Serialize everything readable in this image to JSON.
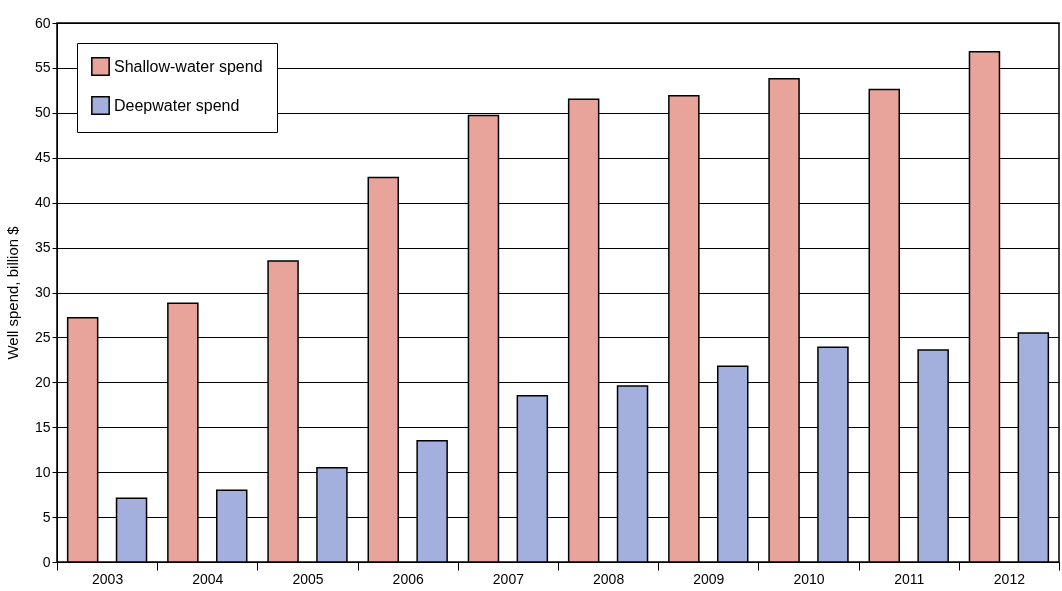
{
  "chart_data": {
    "type": "bar",
    "ylabel": "Well spend, billion $",
    "categories": [
      "2003",
      "2004",
      "2005",
      "2006",
      "2007",
      "2008",
      "2009",
      "2010",
      "2011",
      "2012"
    ],
    "series": [
      {
        "name": "Shallow-water spend",
        "color": "#e8a39b",
        "values": [
          27.2,
          28.8,
          33.5,
          42.8,
          49.7,
          51.5,
          51.9,
          53.8,
          52.6,
          56.8
        ]
      },
      {
        "name": "Deepwater spend",
        "color": "#a3b0de",
        "values": [
          7.1,
          8.0,
          10.5,
          13.5,
          18.5,
          19.6,
          21.8,
          23.9,
          23.6,
          25.5
        ]
      }
    ],
    "ylim": [
      0,
      60
    ],
    "yticks": [
      0,
      5,
      10,
      15,
      20,
      25,
      30,
      35,
      40,
      45,
      50,
      55,
      60
    ],
    "grid": "y",
    "legend": "top left"
  }
}
